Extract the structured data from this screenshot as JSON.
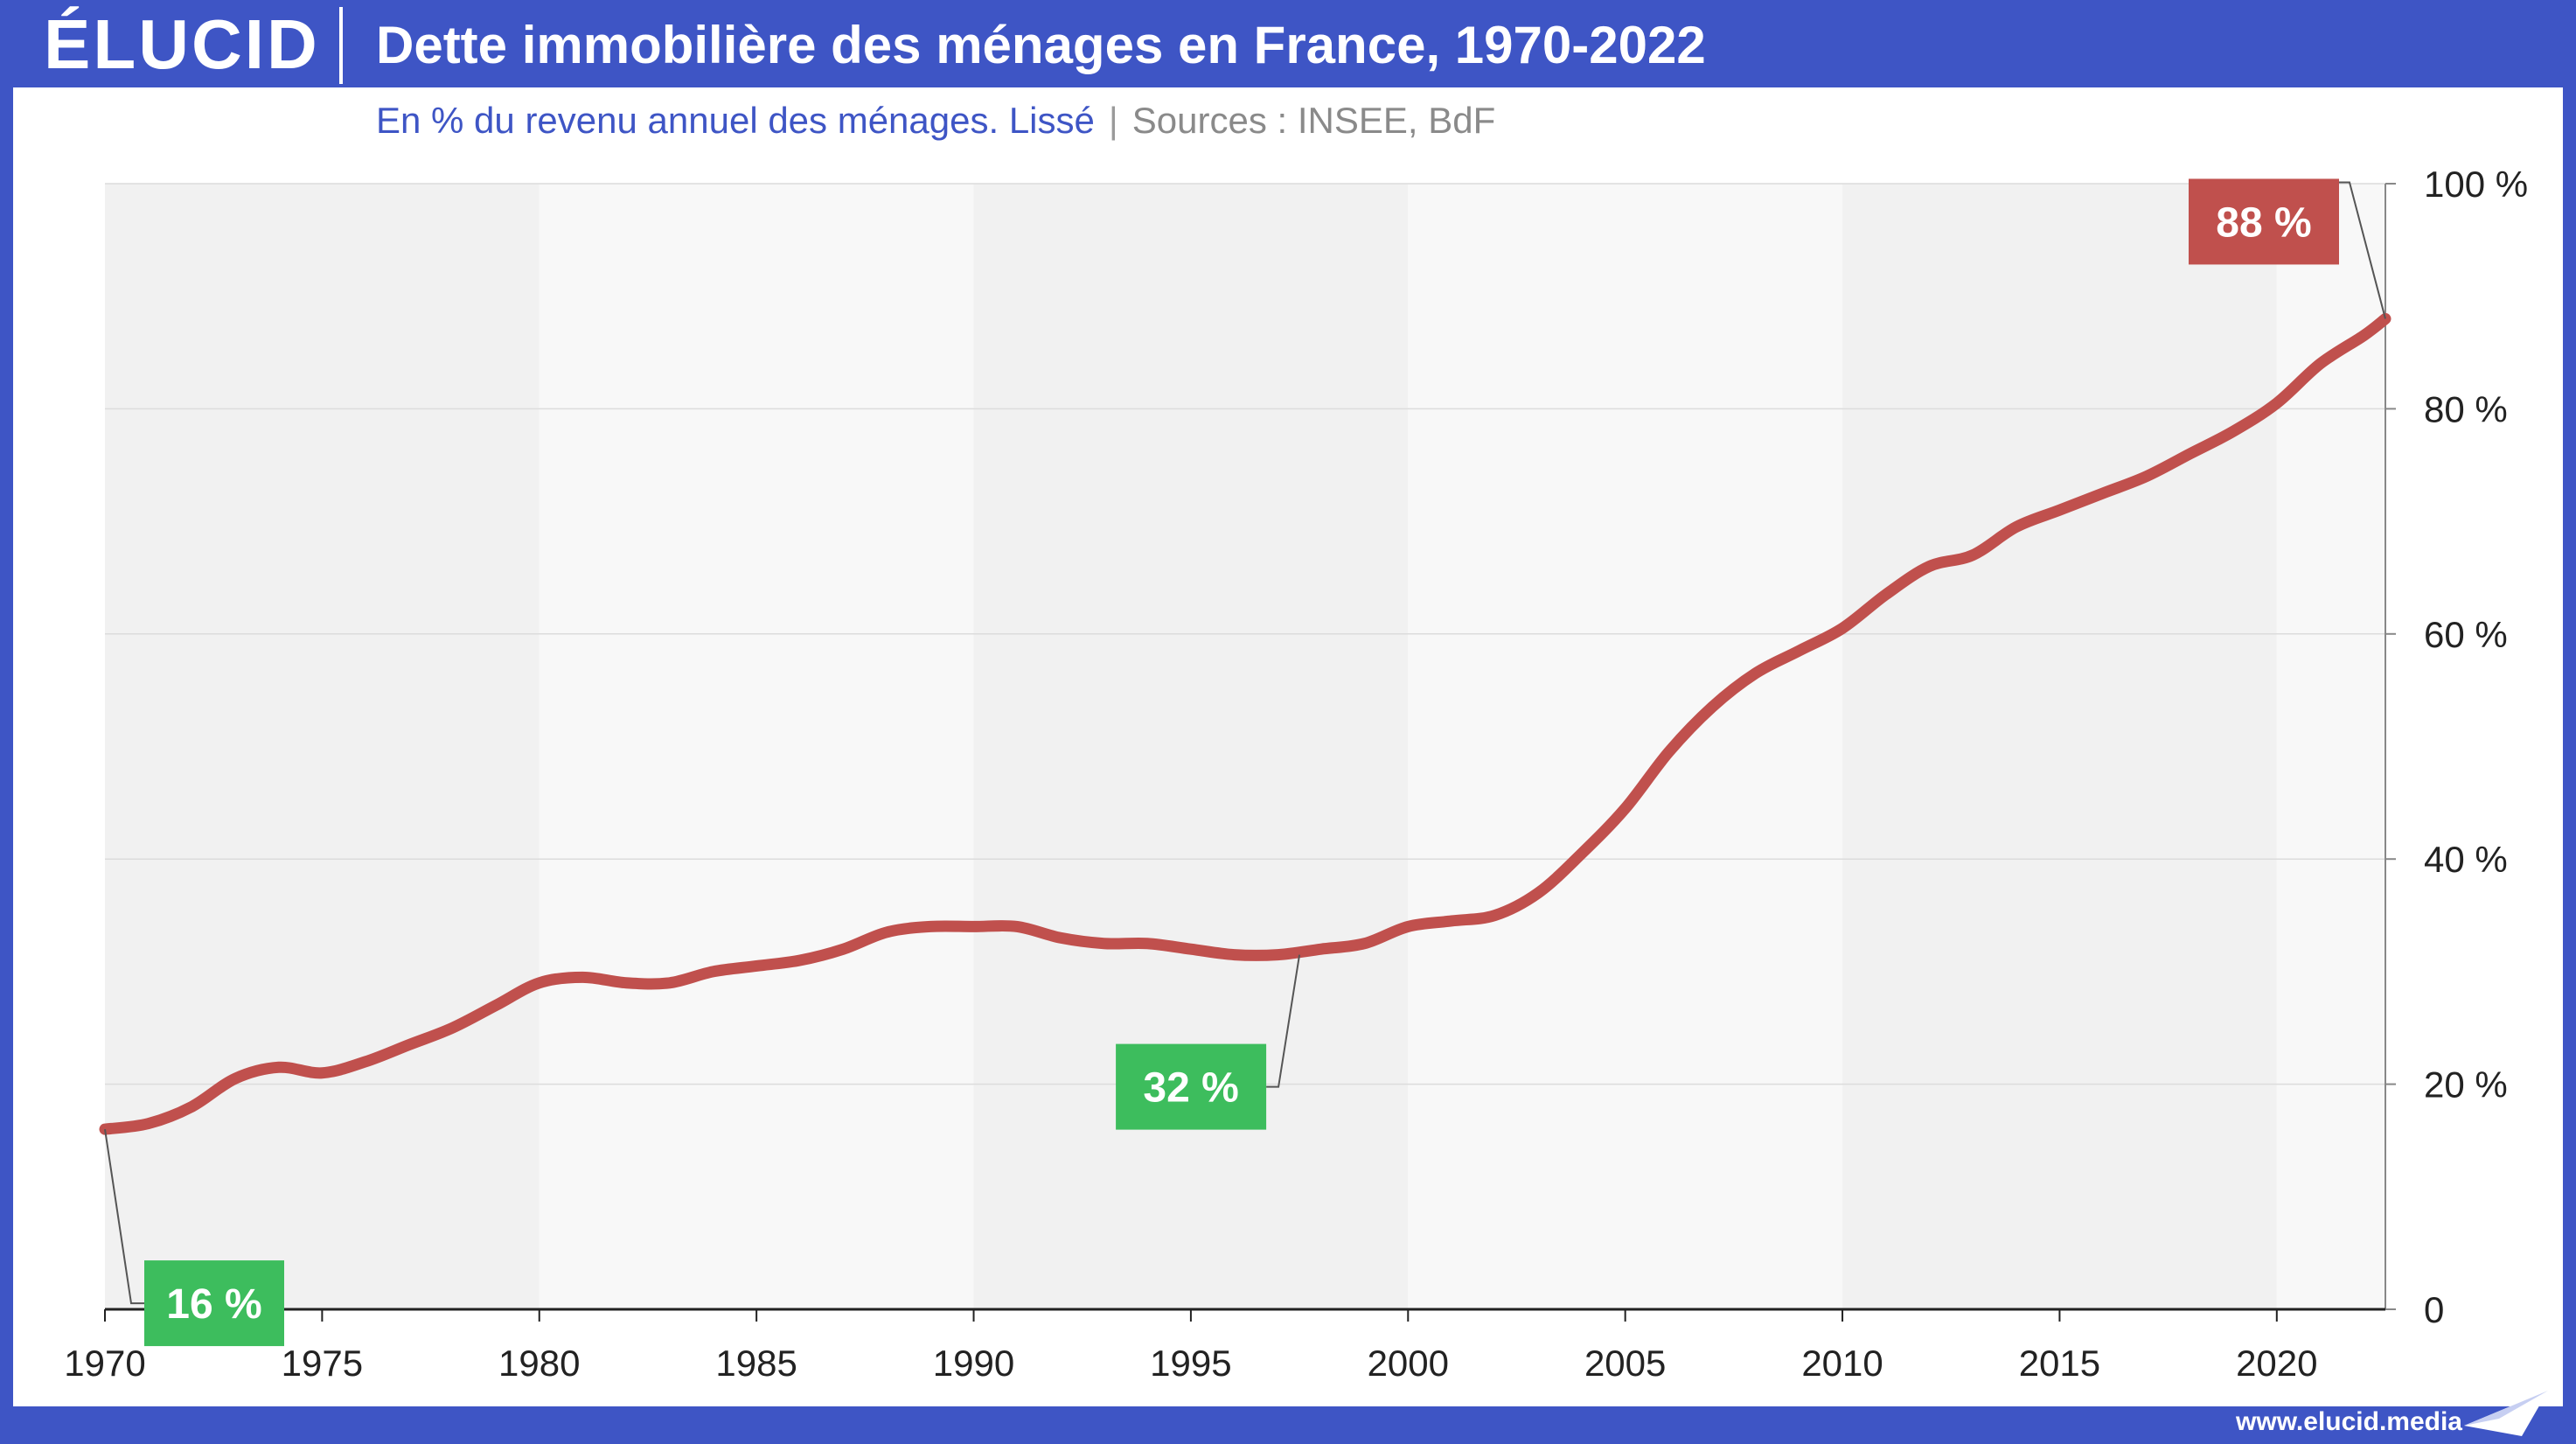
{
  "brand": {
    "logo": "ÉLUCID",
    "url": "www.elucid.media"
  },
  "header": {
    "title": "Dette immobilière des ménages en France, 1970-2022",
    "subtitle": "En % du revenu annuel des ménages. Lissé",
    "separator": "|",
    "sources": "Sources : INSEE, BdF"
  },
  "colors": {
    "brand_blue": "#3e55c5",
    "line": "#c0504d",
    "green_label": "#3dbd5d",
    "red_label": "#c0504d",
    "band_dark": "#f1f1f1",
    "band_light": "#f8f8f8"
  },
  "chart_data": {
    "type": "line",
    "title": "Dette immobilière des ménages en France, 1970-2022",
    "subtitle": "En % du revenu annuel des ménages. Lissé",
    "xlabel": "",
    "ylabel": "",
    "xlim": [
      1970,
      2022.5
    ],
    "ylim": [
      0,
      100
    ],
    "x_ticks": [
      "1970",
      "1975",
      "1980",
      "1985",
      "1990",
      "1995",
      "2000",
      "2005",
      "2010",
      "2015",
      "2020"
    ],
    "y_ticks": [
      "0",
      "20 %",
      "40 %",
      "60 %",
      "80 %",
      "100 %"
    ],
    "y_tick_values": [
      0,
      20,
      40,
      60,
      80,
      100
    ],
    "grid": true,
    "series": [
      {
        "x": [
          1970,
          1971,
          1972,
          1973,
          1974,
          1975,
          1976,
          1977,
          1978,
          1979,
          1980,
          1981,
          1982,
          1983,
          1984,
          1985,
          1986,
          1987,
          1988,
          1989,
          1990,
          1991,
          1992,
          1993,
          1994,
          1995,
          1996,
          1997,
          1998,
          1999,
          2000,
          2001,
          2002,
          2003,
          2004,
          2005,
          2006,
          2007,
          2008,
          2009,
          2010,
          2011,
          2012,
          2013,
          2014,
          2015,
          2016,
          2017,
          2018,
          2019,
          2020,
          2021,
          2022,
          2022.5
        ],
        "y": [
          16,
          16.5,
          18,
          20.5,
          21.5,
          21,
          22,
          23.5,
          25,
          27,
          29,
          29.5,
          29,
          29,
          30,
          30.5,
          31,
          32,
          33.5,
          34,
          34,
          34,
          33,
          32.5,
          32.5,
          32,
          31.5,
          31.5,
          32,
          32.5,
          34,
          34.5,
          35,
          37,
          40.5,
          44.5,
          49.5,
          53.5,
          56.5,
          58.5,
          60.5,
          63.5,
          66,
          67,
          69.5,
          71,
          72.5,
          74,
          76,
          78,
          80.5,
          84,
          86.5,
          88
        ],
        "color": "#c0504d"
      }
    ],
    "annotations": [
      {
        "label": "16 %",
        "x": 1970,
        "y": 16,
        "color": "#3dbd5d"
      },
      {
        "label": "32 %",
        "x": 1997.5,
        "y": 31.5,
        "color": "#3dbd5d"
      },
      {
        "label": "88 %",
        "x": 2022.5,
        "y": 88,
        "color": "#c0504d"
      }
    ]
  }
}
